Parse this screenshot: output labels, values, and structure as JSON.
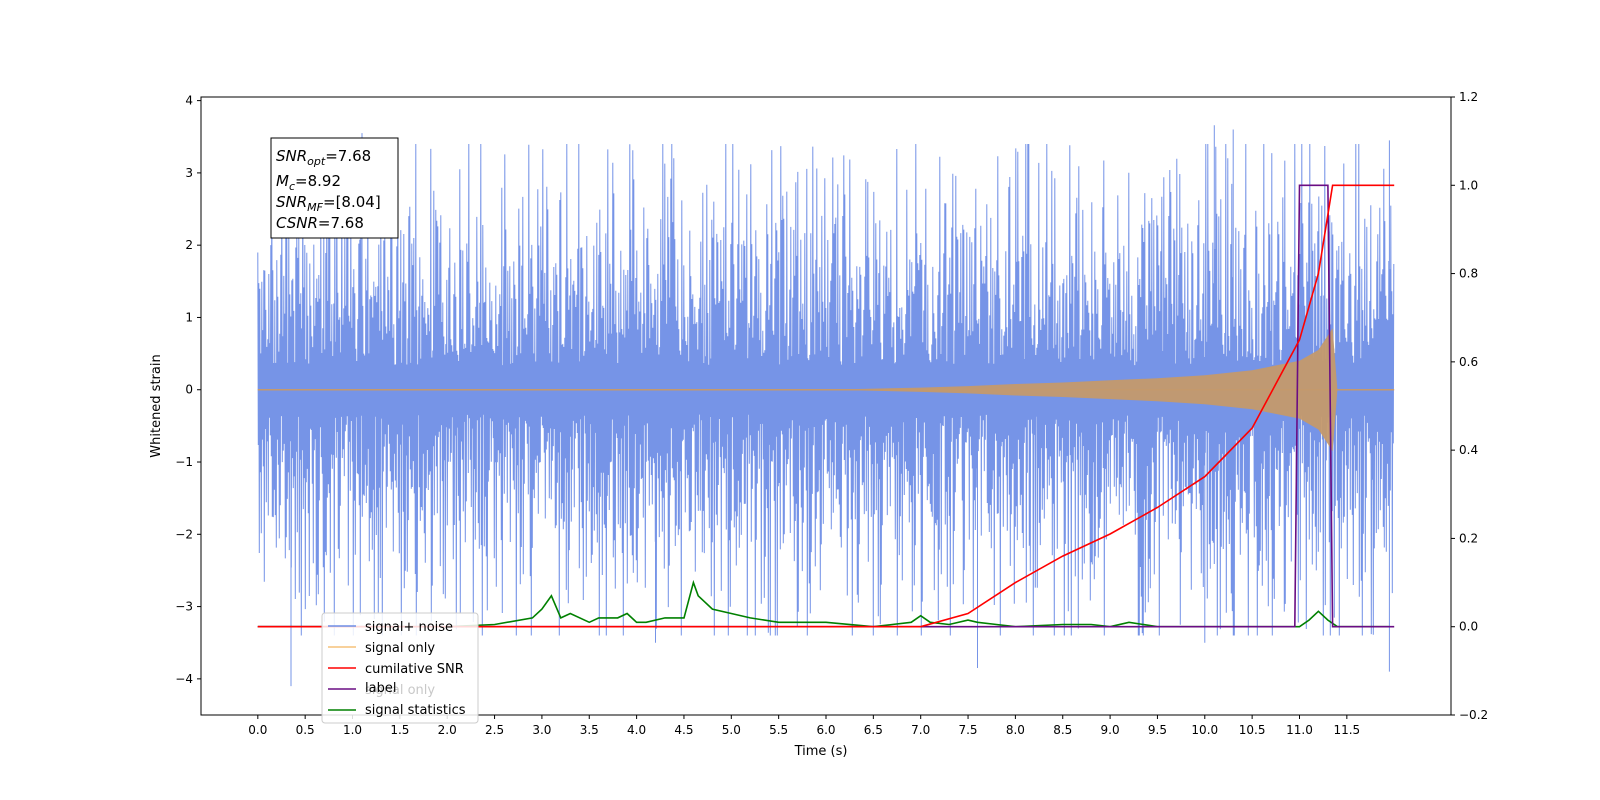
{
  "chart_data": {
    "type": "line",
    "xlabel": "Time (s)",
    "ylabel": "Whitened strain",
    "xlim": [
      -0.6,
      12.6
    ],
    "ylim": [
      -4.5,
      4.05
    ],
    "ylim_right": [
      -0.2,
      1.2
    ],
    "x_ticks": [
      0.0,
      0.5,
      1.0,
      1.5,
      2.0,
      2.5,
      3.0,
      3.5,
      4.0,
      4.5,
      5.0,
      5.5,
      6.0,
      6.5,
      7.0,
      7.5,
      8.0,
      8.5,
      9.0,
      9.5,
      10.0,
      10.5,
      11.0,
      11.5
    ],
    "x_tick_labels": [
      "0.0",
      "0.5",
      "1.0",
      "1.5",
      "2.0",
      "2.5",
      "3.0",
      "3.5",
      "4.0",
      "4.5",
      "5.0",
      "5.5",
      "6.0",
      "6.5",
      "7.0",
      "7.5",
      "8.0",
      "8.5",
      "9.0",
      "9.5",
      "10.0",
      "10.5",
      "11.0",
      "11.5"
    ],
    "y_ticks": [
      -4,
      -3,
      -2,
      -1,
      0,
      1,
      2,
      3,
      4
    ],
    "y_tick_labels": [
      "−4",
      "−3",
      "−2",
      "−1",
      "0",
      "1",
      "2",
      "3",
      "4"
    ],
    "y_ticks_right": [
      -0.2,
      0.0,
      0.2,
      0.4,
      0.6,
      0.8,
      1.0,
      1.2
    ],
    "y_tick_labels_right": [
      "−0.2",
      "0.0",
      "0.2",
      "0.4",
      "0.6",
      "0.8",
      "1.0",
      "1.2"
    ],
    "legend_position": "lower-left",
    "stats_box": {
      "snr_opt": {
        "base": "SNR",
        "sub": "opt",
        "value": "=7.68"
      },
      "mc": {
        "base": "M",
        "sub": "c",
        "value": "=8.92"
      },
      "snr_mf": {
        "base": "SNR",
        "sub": "MF",
        "value": "=[8.04]"
      },
      "csnr": {
        "base": "CSNR",
        "value": "=7.68"
      }
    },
    "series": [
      {
        "name": "signal+ noise",
        "color": "#6f8ee6",
        "axis": "left",
        "x_range": [
          0.0,
          12.0
        ],
        "typical_amplitude": 1.7,
        "max": 3.66,
        "min": -4.1,
        "spikes": [
          [
            1.1,
            3.55
          ],
          [
            0.35,
            -4.1
          ],
          [
            10.1,
            3.66
          ],
          [
            10.3,
            3.6
          ],
          [
            7.6,
            -3.85
          ],
          [
            11.95,
            3.45
          ],
          [
            11.95,
            -3.9
          ],
          [
            4.2,
            -3.5
          ],
          [
            10.0,
            -3.5
          ]
        ]
      },
      {
        "name": "signal only",
        "color": "#c4996c",
        "axis": "left",
        "x": [
          0.0,
          6.0,
          7.0,
          7.5,
          8.0,
          8.5,
          9.0,
          9.5,
          10.0,
          10.5,
          11.0,
          11.2,
          11.35,
          11.4,
          12.0
        ],
        "envelope": [
          0.0,
          0.0,
          0.03,
          0.05,
          0.08,
          0.1,
          0.13,
          0.16,
          0.2,
          0.27,
          0.4,
          0.55,
          0.85,
          0.0,
          0.0
        ]
      },
      {
        "name": "cumilative SNR",
        "color": "#ff0000",
        "axis": "right",
        "x": [
          0.0,
          6.5,
          7.0,
          7.5,
          8.0,
          8.5,
          9.0,
          9.5,
          10.0,
          10.5,
          11.0,
          11.2,
          11.35,
          11.4,
          12.0
        ],
        "values": [
          0.0,
          0.0,
          0.0,
          0.03,
          0.1,
          0.16,
          0.21,
          0.27,
          0.34,
          0.45,
          0.65,
          0.8,
          1.0,
          1.0,
          1.0
        ]
      },
      {
        "name": "label",
        "color": "#6a0d83",
        "axis": "right",
        "x": [
          0.0,
          10.95,
          11.0,
          11.3,
          11.35,
          12.0
        ],
        "values": [
          0.0,
          0.0,
          1.0,
          1.0,
          0.0,
          0.0
        ]
      },
      {
        "name": "signal statistics",
        "color": "#008000",
        "axis": "right",
        "x": [
          0.0,
          2.0,
          2.5,
          2.9,
          3.0,
          3.1,
          3.2,
          3.3,
          3.5,
          3.6,
          3.8,
          3.9,
          4.0,
          4.1,
          4.3,
          4.5,
          4.6,
          4.65,
          4.8,
          5.0,
          5.2,
          5.5,
          6.0,
          6.5,
          6.9,
          7.0,
          7.1,
          7.3,
          7.5,
          7.6,
          7.8,
          8.0,
          8.5,
          8.8,
          9.0,
          9.2,
          9.5,
          10.0,
          11.0,
          11.1,
          11.2,
          11.3,
          11.4,
          11.95
        ],
        "values": [
          0.0,
          0.0,
          0.005,
          0.02,
          0.04,
          0.07,
          0.02,
          0.03,
          0.01,
          0.02,
          0.02,
          0.03,
          0.01,
          0.01,
          0.02,
          0.02,
          0.1,
          0.07,
          0.04,
          0.03,
          0.02,
          0.01,
          0.01,
          0.0,
          0.01,
          0.025,
          0.01,
          0.005,
          0.015,
          0.01,
          0.005,
          0.0,
          0.005,
          0.005,
          0.0,
          0.01,
          0.0,
          0.0,
          0.0,
          0.015,
          0.035,
          0.015,
          0.0,
          0.0
        ]
      }
    ],
    "extra_legend_entry": "signal only"
  }
}
